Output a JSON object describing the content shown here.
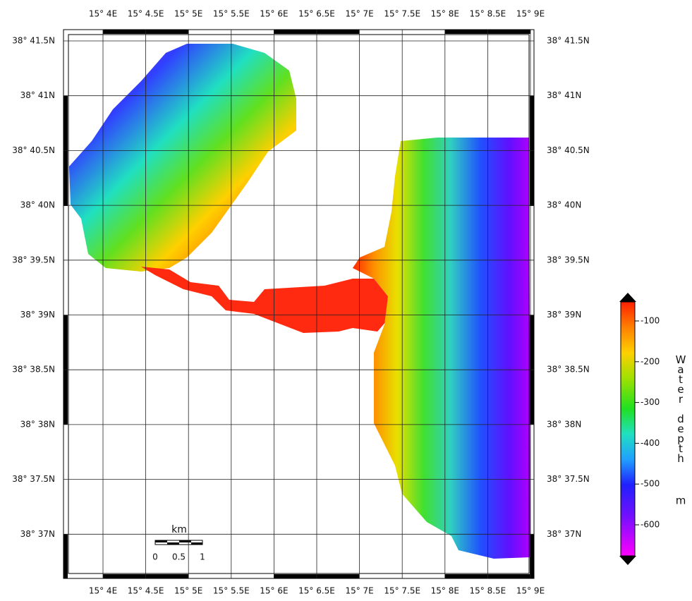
{
  "map": {
    "longitude_labels": [
      "15° 4E",
      "15° 4.5E",
      "15° 5E",
      "15° 5.5E",
      "15° 6E",
      "15° 6.5E",
      "15° 7E",
      "15° 7.5E",
      "15° 8E",
      "15° 8.5E",
      "15° 9E"
    ],
    "latitude_labels": [
      "38° 41.5N",
      "38° 41N",
      "38° 40.5N",
      "38° 40N",
      "38° 39.5N",
      "38° 39N",
      "38° 38.5N",
      "38° 38N",
      "38° 37.5N",
      "38° 37N"
    ],
    "scale_bar": {
      "unit": "km",
      "labels": [
        "0",
        "0.5",
        "1"
      ]
    },
    "colorbar": {
      "title": "Water depth",
      "unit": "m",
      "labels": [
        "-100",
        "-200",
        "-300",
        "-400",
        "-500",
        "-600"
      ]
    }
  }
}
